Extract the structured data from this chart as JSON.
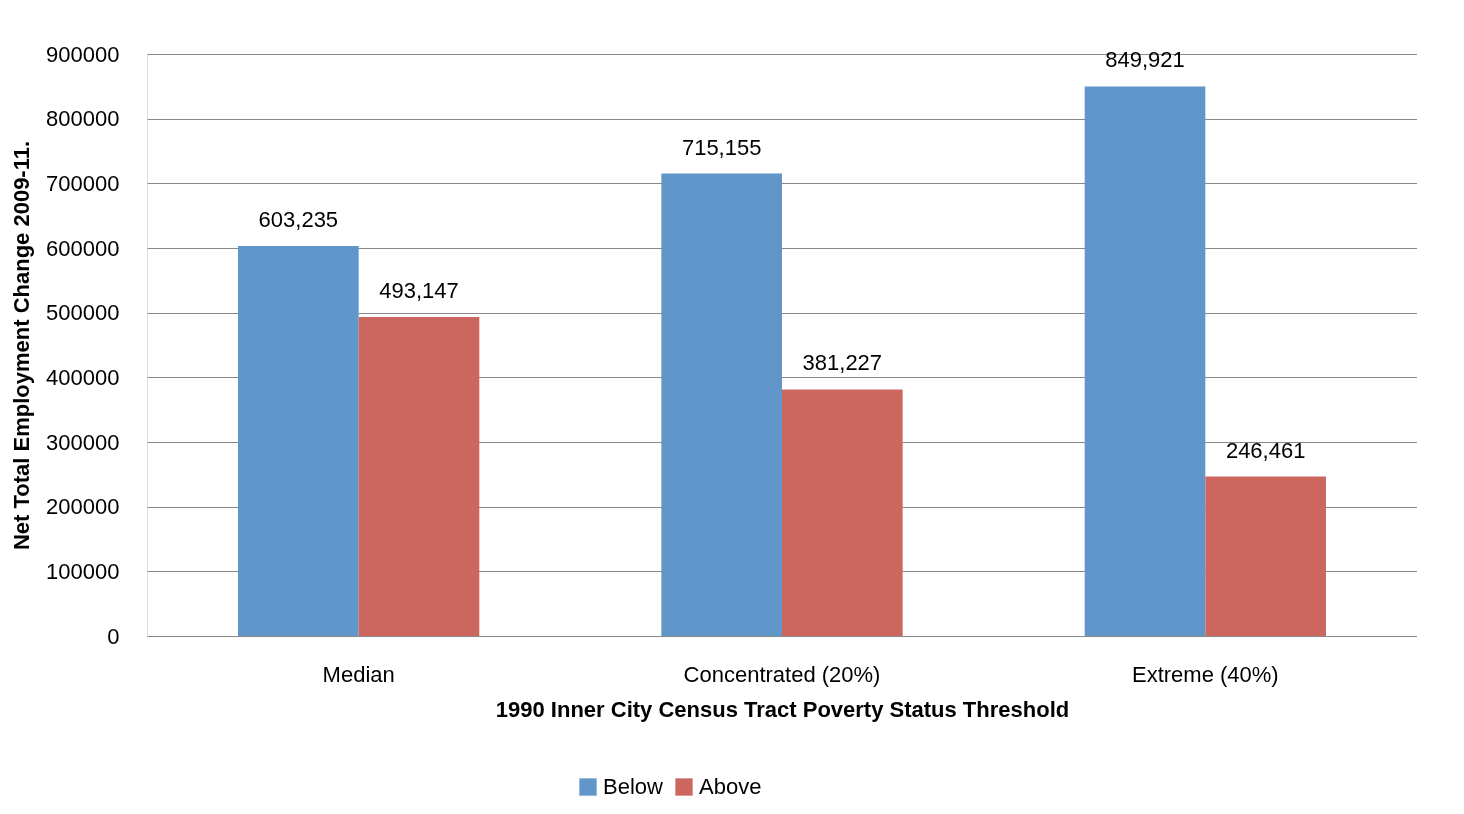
{
  "chart_data": {
    "type": "bar",
    "xlabel": "1990 Inner City Census Tract Poverty Status Threshold",
    "ylabel": "Net Total Employment Change 2009-11.",
    "categories": [
      "Median",
      "Concentrated (20%)",
      "Extreme (40%)"
    ],
    "series": [
      {
        "name": "Below",
        "color": "#6096c9",
        "values": [
          603235,
          715155,
          849921
        ],
        "value_labels": [
          "603,235",
          "715,155",
          "849,921"
        ]
      },
      {
        "name": "Above",
        "color": "#cc6760",
        "values": [
          493147,
          381227,
          246461
        ],
        "value_labels": [
          "493,147",
          "381,227",
          "246,461"
        ]
      }
    ],
    "ylim": [
      0,
      900000
    ],
    "yticks": [
      0,
      100000,
      200000,
      300000,
      400000,
      500000,
      600000,
      700000,
      800000,
      900000
    ],
    "grid": "y",
    "legend": "bottom"
  }
}
